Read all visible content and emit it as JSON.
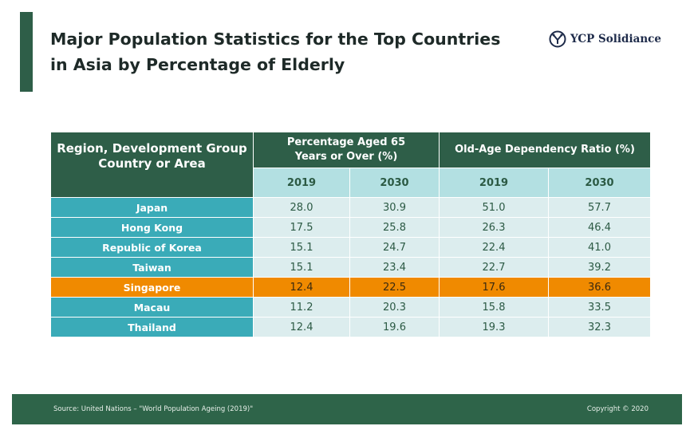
{
  "title": {
    "line1": "Major Population Statistics for the Top Countries",
    "line2": "in Asia by Percentage of Elderly"
  },
  "logo": {
    "text": "YCP Solidiance"
  },
  "table": {
    "region_header": "Region, Development Group Country or Area",
    "group1": "Percentage Aged 65 Years or Over (%)",
    "group2": "Old-Age Dependency Ratio (%)",
    "years": [
      "2019",
      "2030",
      "2019",
      "2030"
    ],
    "rows": [
      {
        "region": "Japan",
        "v": [
          "28.0",
          "30.9",
          "51.0",
          "57.7"
        ]
      },
      {
        "region": "Hong Kong",
        "v": [
          "17.5",
          "25.8",
          "26.3",
          "46.4"
        ]
      },
      {
        "region": "Republic of Korea",
        "v": [
          "15.1",
          "24.7",
          "22.4",
          "41.0"
        ]
      },
      {
        "region": "Taiwan",
        "v": [
          "15.1",
          "23.4",
          "22.7",
          "39.2"
        ]
      },
      {
        "region": "Singapore",
        "v": [
          "12.4",
          "22.5",
          "17.6",
          "36.6"
        ],
        "highlight": true
      },
      {
        "region": "Macau",
        "v": [
          "11.2",
          "20.3",
          "15.8",
          "33.5"
        ]
      },
      {
        "region": "Thailand",
        "v": [
          "12.4",
          "19.6",
          "19.3",
          "32.3"
        ]
      }
    ]
  },
  "footer": {
    "source": "Source: United Nations – \"World Population Ageing (2019)\"",
    "copyright": "Copyright © 2020"
  }
}
